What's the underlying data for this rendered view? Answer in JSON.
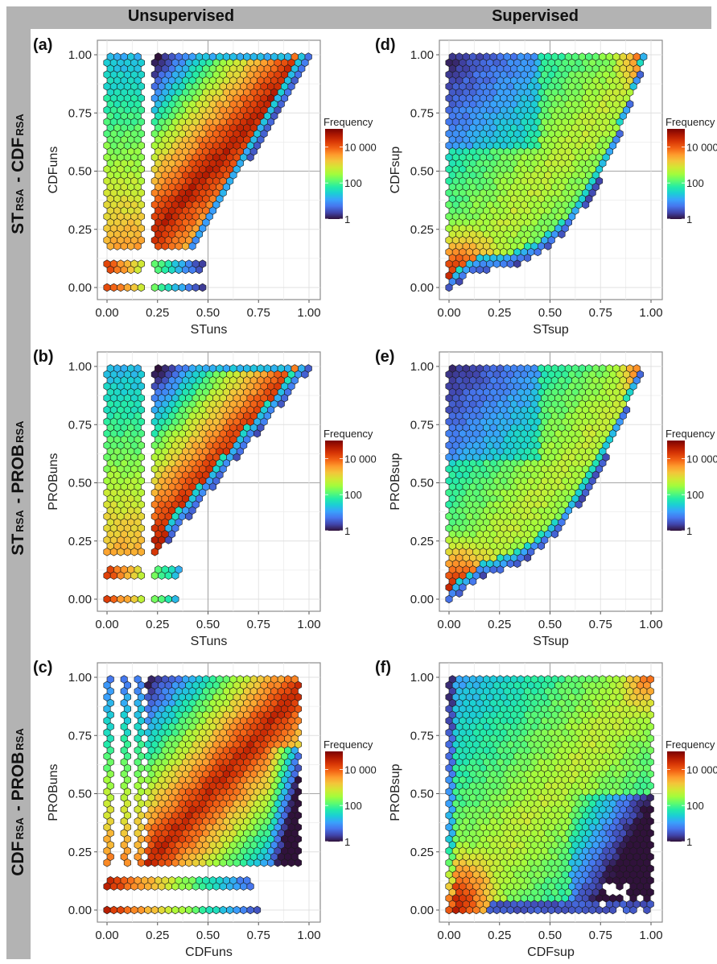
{
  "header": {
    "columns": [
      "Unsupervised",
      "Supervised"
    ],
    "rows": [
      {
        "a": "ST",
        "a_sub": "RSA",
        "sep": "-",
        "b": "CDF",
        "b_sub": "RSA"
      },
      {
        "a": "ST",
        "a_sub": "RSA",
        "sep": "-",
        "b": "PROB",
        "b_sub": "RSA"
      },
      {
        "a": "CDF",
        "a_sub": "RSA",
        "sep": "-",
        "b": "PROB",
        "b_sub": "RSA"
      }
    ]
  },
  "colors": {
    "frame": "#b3b3b3",
    "colormap": [
      "#30123b",
      "#4145ab",
      "#4675ed",
      "#39a2fc",
      "#1bcfd4",
      "#24eca6",
      "#61fc6c",
      "#a4fc3b",
      "#d1e834",
      "#f3c63a",
      "#fe9b2d",
      "#f36315",
      "#d93806",
      "#b11901",
      "#7a0403"
    ]
  },
  "chart_data": [
    {
      "id": "a",
      "type": "heatmap",
      "subtype": "hexbin",
      "panel_label": "(a)",
      "xlabel": "STuns",
      "ylabel": "CDFuns",
      "xlim": [
        0,
        1
      ],
      "ylim": [
        0,
        1
      ],
      "xticks": [
        "0.00",
        "0.25",
        "0.50",
        "0.75",
        "1.00"
      ],
      "yticks": [
        "0.00",
        "0.25",
        "0.50",
        "0.75",
        "1.00"
      ],
      "grid": true,
      "legend": {
        "title": "Frequency",
        "scale": "log10",
        "range": [
          1,
          100000
        ],
        "ticks": [
          "1",
          "100",
          "10 000"
        ],
        "placement": "right"
      },
      "description": "Upper-left triangle (y >= x - ~0.1); empty vertical gap at x≈0.2; isolated rows at y≈0.09 and y=0; highest density along diagonal from (0.1,0.25) to (1,1)",
      "model": {
        "shape": "upper",
        "edge_slope": 1.45,
        "edge_offset": -0.45,
        "gap_x": 0.2,
        "low_rows": [
          0.0,
          0.09
        ],
        "low_row_xmax": [
          0.48,
          0.48
        ],
        "band_ymin": 0.17,
        "peak": "diag"
      }
    },
    {
      "id": "b",
      "type": "heatmap",
      "subtype": "hexbin",
      "panel_label": "(b)",
      "xlabel": "STuns",
      "ylabel": "PROBuns",
      "xlim": [
        0,
        1
      ],
      "ylim": [
        0,
        1
      ],
      "xticks": [
        "0.00",
        "0.25",
        "0.50",
        "0.75",
        "1.00"
      ],
      "yticks": [
        "0.00",
        "0.25",
        "0.50",
        "0.75",
        "1.00"
      ],
      "grid": true,
      "legend": {
        "title": "Frequency",
        "scale": "log10",
        "range": [
          1,
          100000
        ],
        "ticks": [
          "1",
          "100",
          "10 000"
        ],
        "placement": "right"
      },
      "description": "Upper-left triangle; gap at x≈0.2; isolated rows at y≈0.11 and y=0; highest density along the diagonal",
      "model": {
        "shape": "upper",
        "edge_slope": 1.05,
        "edge_offset": -0.05,
        "gap_x": 0.2,
        "low_rows": [
          0.0,
          0.11
        ],
        "low_row_xmax": [
          0.34,
          0.37
        ],
        "band_ymin": 0.2,
        "peak": "diag"
      }
    },
    {
      "id": "c",
      "type": "heatmap",
      "subtype": "hexbin",
      "panel_label": "(c)",
      "xlabel": "CDFuns",
      "ylabel": "PROBuns",
      "xlim": [
        0,
        1
      ],
      "ylim": [
        0,
        1
      ],
      "xticks": [
        "0.00",
        "0.25",
        "0.50",
        "0.75",
        "1.00"
      ],
      "yticks": [
        "0.00",
        "0.25",
        "0.50",
        "0.75",
        "1.00"
      ],
      "grid": true,
      "legend": {
        "title": "Frequency",
        "scale": "log10",
        "range": [
          1,
          100000
        ],
        "ticks": [
          "1",
          "100",
          "10 000"
        ],
        "placement": "right"
      },
      "description": "Discrete columns at x≈0, 0.09, 0.16 then dense block from x≈0.22; rows at y≈0.11 and y=0; dense diagonal band; sparse low counts at right edge",
      "model": {
        "shape": "columns",
        "columns_x": [
          0.0,
          0.09,
          0.16
        ],
        "low_rows": [
          0.0,
          0.11
        ],
        "low_row_xmax": [
          0.77,
          0.72
        ],
        "band_ymin": 0.2,
        "peak": "diag"
      }
    },
    {
      "id": "d",
      "type": "heatmap",
      "subtype": "hexbin",
      "panel_label": "(d)",
      "xlabel": "STsup",
      "ylabel": "CDFsup",
      "xlim": [
        0,
        1
      ],
      "ylim": [
        0,
        1
      ],
      "xticks": [
        "0.00",
        "0.25",
        "0.50",
        "0.75",
        "1.00"
      ],
      "yticks": [
        "0.00",
        "0.25",
        "0.50",
        "0.75",
        "1.00"
      ],
      "grid": true,
      "legend": {
        "title": "Frequency",
        "scale": "log10",
        "range": [
          1,
          100000
        ],
        "ticks": [
          "1",
          "100",
          "10 000"
        ],
        "placement": "right"
      },
      "description": "Filled region above convex lower boundary; peak density near origin and at (1,1); moderate yellow diagonal band",
      "model": {
        "shape": "convex",
        "curve_power": 3.2,
        "curve_floor": 0.08,
        "peak": "corners"
      }
    },
    {
      "id": "e",
      "type": "heatmap",
      "subtype": "hexbin",
      "panel_label": "(e)",
      "xlabel": "STsup",
      "ylabel": "PROBsup",
      "xlim": [
        0,
        1
      ],
      "ylim": [
        0,
        1
      ],
      "xticks": [
        "0.00",
        "0.25",
        "0.50",
        "0.75",
        "1.00"
      ],
      "yticks": [
        "0.00",
        "0.25",
        "0.50",
        "0.75",
        "1.00"
      ],
      "grid": true,
      "legend": {
        "title": "Frequency",
        "scale": "log10",
        "range": [
          1,
          100000
        ],
        "ticks": [
          "1",
          "100",
          "10 000"
        ],
        "placement": "right"
      },
      "description": "Filled region above convex lower boundary; peak density at origin, orange along diagonal to (1,1)",
      "model": {
        "shape": "convex",
        "curve_power": 2.6,
        "curve_floor": 0.1,
        "peak": "corners"
      }
    },
    {
      "id": "f",
      "type": "heatmap",
      "subtype": "hexbin",
      "panel_label": "(f)",
      "xlabel": "CDFsup",
      "ylabel": "PROBsup",
      "xlim": [
        0,
        1
      ],
      "ylim": [
        0,
        1
      ],
      "xticks": [
        "0.00",
        "0.25",
        "0.50",
        "0.75",
        "1.00"
      ],
      "yticks": [
        "0.00",
        "0.25",
        "0.50",
        "0.75",
        "1.00"
      ],
      "grid": true,
      "legend": {
        "title": "Frequency",
        "scale": "log10",
        "range": [
          1,
          100000
        ],
        "ticks": [
          "1",
          "100",
          "10 000"
        ],
        "placement": "right"
      },
      "description": "Nearly full square coverage; peak density near origin and at (1,1); low counts (dark blue) in lower-right region",
      "model": {
        "shape": "square",
        "peak": "corners"
      }
    }
  ]
}
